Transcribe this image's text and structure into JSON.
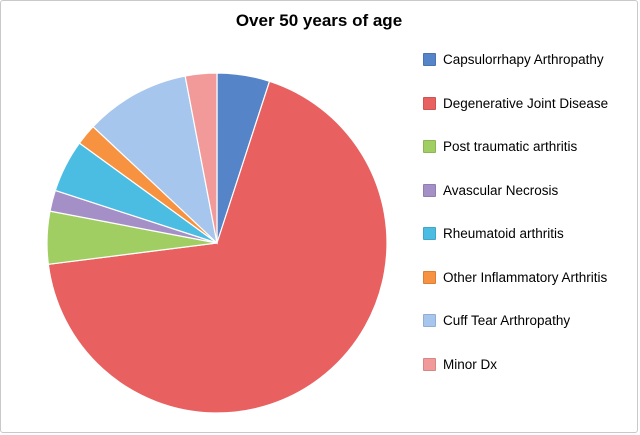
{
  "chart_data": {
    "type": "pie",
    "title": "Over 50 years of age",
    "legend_position": "right",
    "start_angle_deg": 0,
    "direction": "clockwise",
    "background": "#ffffff",
    "slices": [
      {
        "label": "Capsulorrhapy Arthropathy",
        "value": 5,
        "color": "#5585c8"
      },
      {
        "label": "Degenerative Joint Disease",
        "value": 68,
        "color": "#e86060"
      },
      {
        "label": "Post traumatic arthritis",
        "value": 5,
        "color": "#a0ce63"
      },
      {
        "label": "Avascular Necrosis",
        "value": 2,
        "color": "#a58fc7"
      },
      {
        "label": "Rheumatoid arthritis",
        "value": 5,
        "color": "#4bbde2"
      },
      {
        "label": "Other Inflammatory Arthritis",
        "value": 2,
        "color": "#f79240"
      },
      {
        "label": "Cuff Tear Arthropathy",
        "value": 10,
        "color": "#a7c6ed"
      },
      {
        "label": "Minor Dx",
        "value": 3,
        "color": "#f29a9a"
      }
    ]
  }
}
